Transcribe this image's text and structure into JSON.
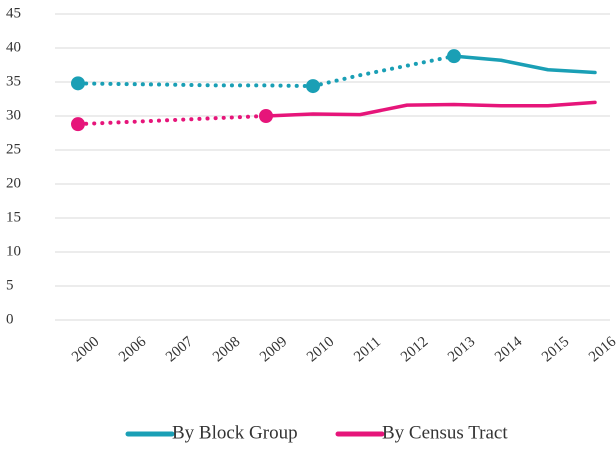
{
  "chart_data": {
    "type": "line",
    "categories": [
      "2000",
      "2006",
      "2007",
      "2008",
      "2009",
      "2010",
      "2011",
      "2012",
      "2013",
      "2014",
      "2015",
      "2016"
    ],
    "series": [
      {
        "name": "By Block Group",
        "color": "#1a9fb5",
        "dotted_until": "2013",
        "highlight": [
          "2000",
          "2010",
          "2013"
        ],
        "values": [
          34.8,
          34.7,
          34.6,
          34.5,
          34.5,
          34.4,
          36.0,
          37.4,
          38.8,
          38.2,
          36.8,
          36.4
        ]
      },
      {
        "name": "By Census Tract",
        "color": "#e6157a",
        "dotted_until": "2009",
        "highlight": [
          "2000",
          "2009"
        ],
        "values": [
          28.8,
          29.1,
          29.4,
          29.7,
          30.0,
          30.3,
          30.2,
          31.6,
          31.7,
          31.5,
          31.5,
          32.0
        ]
      }
    ],
    "ylim": [
      0,
      45
    ],
    "yticks": [
      0,
      5,
      10,
      15,
      20,
      25,
      30,
      35,
      40,
      45
    ],
    "grid": true,
    "legend": "bottom"
  }
}
